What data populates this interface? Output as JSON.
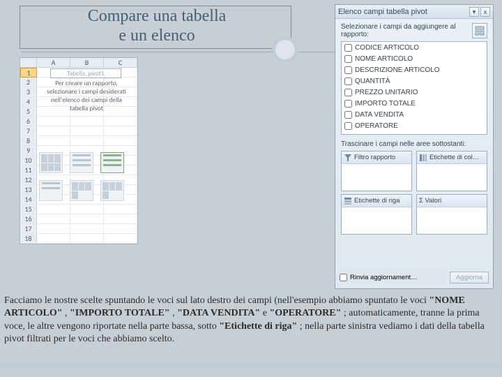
{
  "title_line1": "Compare una tabella",
  "title_line2": "e un elenco",
  "sheet": {
    "cols": [
      "",
      "A",
      "B",
      "C"
    ],
    "rows": 18,
    "pivot_placeholder": "Tabella_pivot1",
    "hint": "Per creare un rapporto, selezionare i campi desiderati nell'elenco dei campi della tabella pivot"
  },
  "panel": {
    "title": "Elenco campi tabella pivot",
    "subtitle": "Selezionare i campi da aggiungere al rapporto:",
    "fields": [
      "CODICE ARTICOLO",
      "NOME ARTICOLO",
      "DESCRIZIONE ARTICOLO",
      "QUANTITÀ",
      "PREZZO UNITARIO",
      "IMPORTO TOTALE",
      "DATA VENDITA",
      "OPERATORE"
    ],
    "drag_hint": "Trascinare i campi nelle aree sottostanti:",
    "zones": {
      "filter": "Filtro rapporto",
      "cols": "Etichette di col…",
      "rows": "Etichette di riga",
      "vals": "Σ  Valori"
    },
    "defer_label": "Rinvia aggiornament…",
    "update_btn": "Aggiorna"
  },
  "caption": {
    "t1": "Facciamo le nostre scelte spuntando le voci sul lato destro dei campi (nell'esempio abbiamo spuntato le voci ",
    "b1": "\"NOME ARTICOLO\"",
    "t2": ", ",
    "b2": "\"IMPORTO TOTALE\"",
    "t3": ", ",
    "b3": "\"DATA VENDITA\"",
    "t4": " e ",
    "b4": "\"OPERATORE\"",
    "t5": "; automaticamente, tranne la prima voce, le altre vengono riportate nella parte bassa, sotto ",
    "b5": "\"Etichette di riga\"",
    "t6": "; nella parte sinistra vediamo i dati della tabella pivot filtrati per le voci che abbiamo scelto."
  },
  "colors": {
    "accent": "#455f77",
    "panel_border": "#8fa2b4"
  }
}
